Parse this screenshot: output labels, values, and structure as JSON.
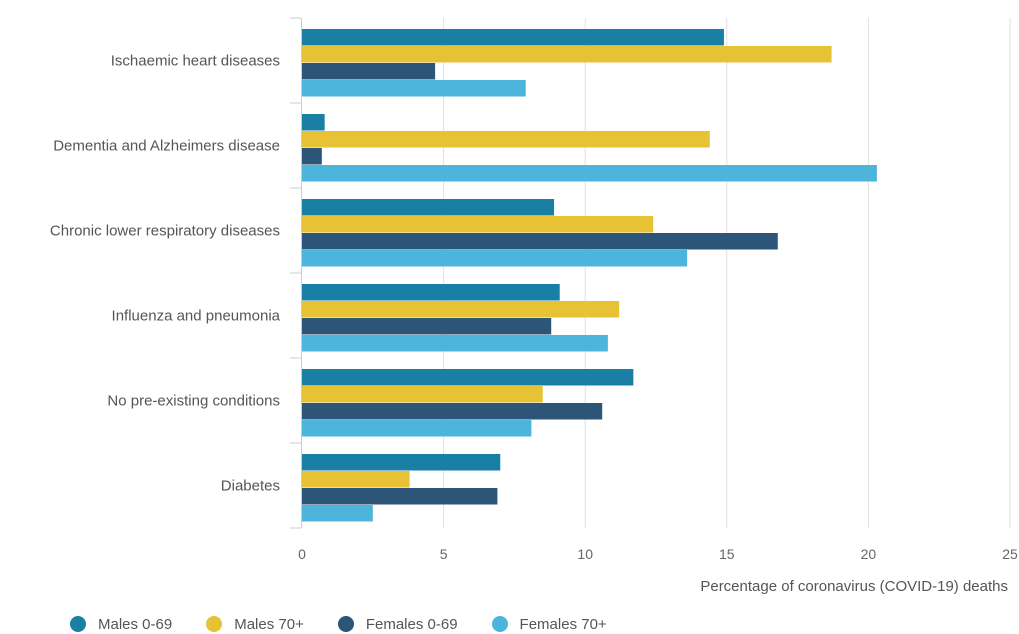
{
  "chart_data": {
    "type": "bar",
    "orientation": "horizontal",
    "title": "",
    "xlabel": "Percentage of coronavirus (COVID-19) deaths",
    "ylabel": "",
    "xlim": [
      0,
      25
    ],
    "x_ticks": [
      0,
      5,
      10,
      15,
      20,
      25
    ],
    "grid": true,
    "legend_position": "bottom-left",
    "categories": [
      "Ischaemic heart diseases",
      "Dementia and Alzheimers disease",
      "Chronic lower respiratory diseases",
      "Influenza and pneumonia",
      "No pre-existing conditions",
      "Diabetes"
    ],
    "series": [
      {
        "name": "Males 0-69",
        "color": "#1a7fa4",
        "values": [
          14.9,
          0.8,
          8.9,
          9.1,
          11.7,
          7.0
        ]
      },
      {
        "name": "Males 70+",
        "color": "#e6c234",
        "values": [
          18.7,
          14.4,
          12.4,
          11.2,
          8.5,
          3.8
        ]
      },
      {
        "name": "Females 0-69",
        "color": "#2c5577",
        "values": [
          4.7,
          0.7,
          16.8,
          8.8,
          10.6,
          6.9
        ]
      },
      {
        "name": "Females 70+",
        "color": "#4db4dc",
        "values": [
          7.9,
          20.3,
          13.6,
          10.8,
          8.1,
          2.5
        ]
      }
    ]
  }
}
